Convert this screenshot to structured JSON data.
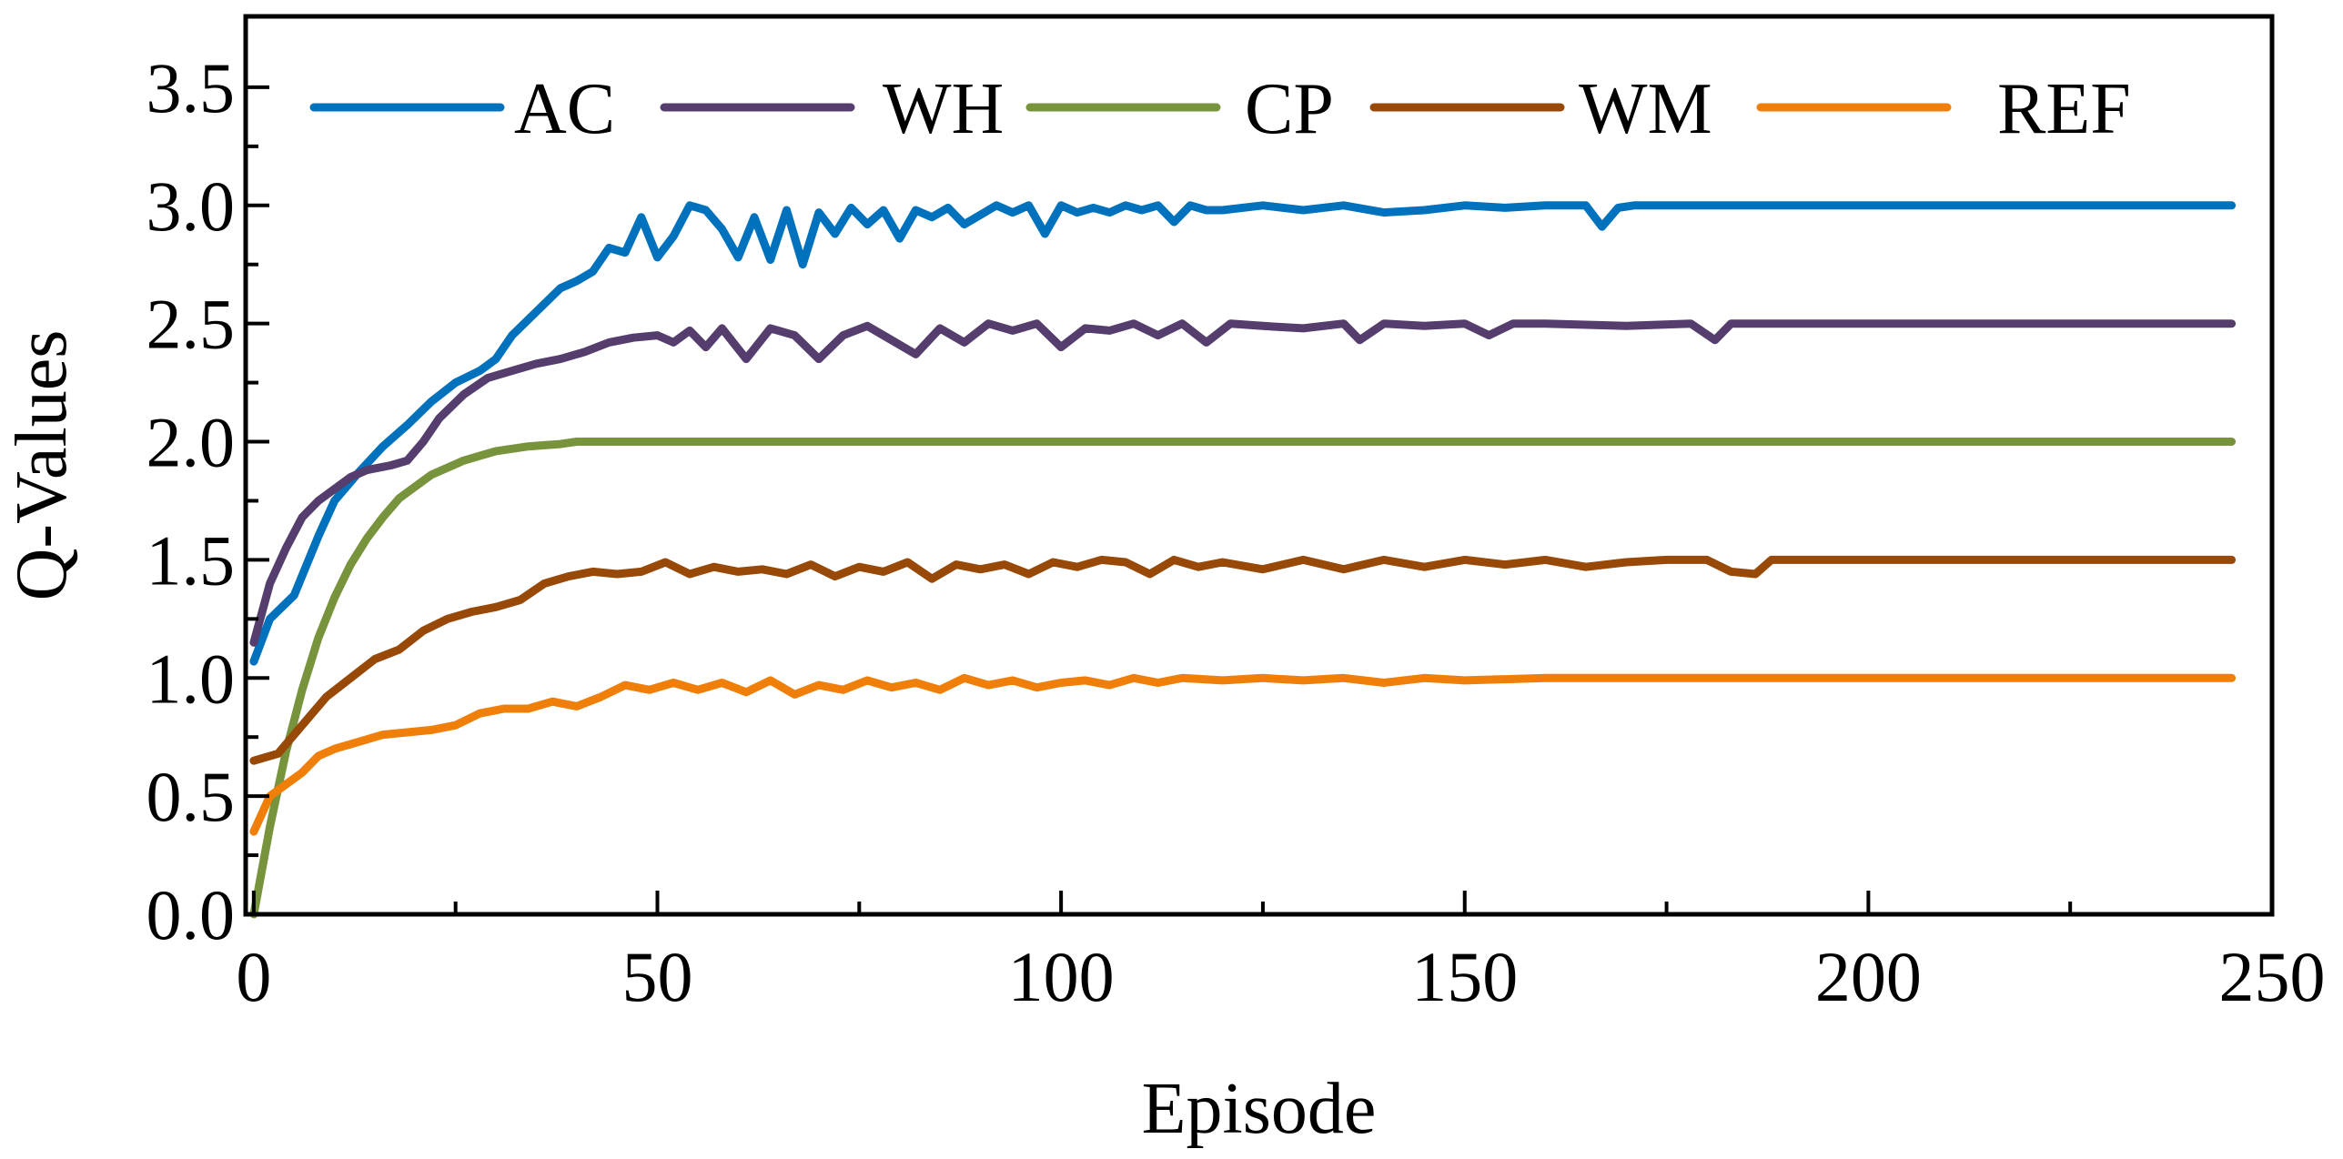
{
  "chart_data": {
    "type": "line",
    "title": "",
    "xlabel": "Episode",
    "ylabel": "Q-Values",
    "xlim": [
      -1,
      250
    ],
    "ylim": [
      0,
      3.8
    ],
    "xticks": [
      0,
      50,
      100,
      150,
      200,
      250
    ],
    "xtick_labels": [
      "0",
      "50",
      "100",
      "150",
      "200",
      "250"
    ],
    "yticks": [
      0,
      0.5,
      1.0,
      1.5,
      2.0,
      2.5,
      3.0,
      3.5
    ],
    "ytick_labels": [
      "0.0",
      "0.5",
      "1.0",
      "1.5",
      "2.0",
      "2.5",
      "3.0",
      "3.5"
    ],
    "grid": false,
    "legend_position": "top",
    "series": [
      {
        "name": "AC",
        "color": "#0072BD",
        "x": [
          0,
          2,
          5,
          8,
          10,
          13,
          16,
          19,
          22,
          25,
          28,
          30,
          32,
          35,
          38,
          40,
          42,
          44,
          46,
          48,
          50,
          52,
          54,
          56,
          58,
          60,
          62,
          64,
          66,
          68,
          70,
          72,
          74,
          76,
          78,
          80,
          82,
          84,
          86,
          88,
          90,
          92,
          94,
          96,
          98,
          100,
          102,
          104,
          106,
          108,
          110,
          112,
          114,
          116,
          118,
          120,
          125,
          130,
          135,
          140,
          145,
          150,
          155,
          160,
          165,
          167,
          169,
          171,
          175,
          180,
          190,
          200,
          210,
          220,
          230,
          245
        ],
        "y": [
          1.07,
          1.25,
          1.35,
          1.6,
          1.75,
          1.87,
          1.98,
          2.07,
          2.17,
          2.25,
          2.3,
          2.35,
          2.45,
          2.55,
          2.65,
          2.68,
          2.72,
          2.82,
          2.8,
          2.95,
          2.78,
          2.87,
          3.0,
          2.98,
          2.9,
          2.78,
          2.95,
          2.77,
          2.98,
          2.75,
          2.97,
          2.88,
          2.99,
          2.92,
          2.98,
          2.86,
          2.98,
          2.95,
          2.99,
          2.92,
          2.96,
          3.0,
          2.97,
          3.0,
          2.88,
          3.0,
          2.97,
          2.99,
          2.97,
          3.0,
          2.98,
          3.0,
          2.93,
          3.0,
          2.98,
          2.98,
          3.0,
          2.98,
          3.0,
          2.97,
          2.98,
          3.0,
          2.99,
          3.0,
          3.0,
          2.91,
          2.99,
          3.0,
          3.0,
          3.0,
          3.0,
          3.0,
          3.0,
          3.0,
          3.0,
          3.0
        ]
      },
      {
        "name": "WH",
        "color": "#553E6E",
        "x": [
          0,
          2,
          4,
          6,
          8,
          10,
          12,
          14,
          17,
          19,
          21,
          23,
          26,
          29,
          32,
          35,
          38,
          41,
          44,
          47,
          50,
          52,
          54,
          56,
          58,
          61,
          64,
          67,
          70,
          73,
          76,
          79,
          82,
          85,
          88,
          91,
          94,
          97,
          100,
          103,
          106,
          109,
          112,
          115,
          118,
          121,
          125,
          130,
          135,
          137,
          140,
          145,
          150,
          153,
          156,
          160,
          170,
          178,
          181,
          183,
          190,
          200,
          210,
          220,
          230,
          245
        ],
        "y": [
          1.15,
          1.4,
          1.55,
          1.68,
          1.75,
          1.8,
          1.85,
          1.88,
          1.9,
          1.92,
          2.0,
          2.1,
          2.2,
          2.27,
          2.3,
          2.33,
          2.35,
          2.38,
          2.42,
          2.44,
          2.45,
          2.42,
          2.47,
          2.4,
          2.48,
          2.35,
          2.48,
          2.45,
          2.35,
          2.45,
          2.49,
          2.43,
          2.37,
          2.48,
          2.42,
          2.5,
          2.47,
          2.5,
          2.4,
          2.48,
          2.47,
          2.5,
          2.45,
          2.5,
          2.42,
          2.5,
          2.49,
          2.48,
          2.5,
          2.43,
          2.5,
          2.49,
          2.5,
          2.45,
          2.5,
          2.5,
          2.49,
          2.5,
          2.43,
          2.5,
          2.5,
          2.5,
          2.5,
          2.5,
          2.5,
          2.5
        ]
      },
      {
        "name": "CP",
        "color": "#77933C",
        "x": [
          0,
          2,
          4,
          6,
          8,
          10,
          12,
          14,
          16,
          18,
          20,
          22,
          24,
          26,
          28,
          30,
          32,
          34,
          36,
          38,
          40,
          45,
          50,
          60,
          80,
          100,
          150,
          200,
          245
        ],
        "y": [
          0.0,
          0.37,
          0.69,
          0.95,
          1.17,
          1.34,
          1.48,
          1.59,
          1.68,
          1.76,
          1.81,
          1.86,
          1.89,
          1.92,
          1.94,
          1.96,
          1.97,
          1.98,
          1.985,
          1.99,
          2.0,
          2.0,
          2.0,
          2.0,
          2.0,
          2.0,
          2.0,
          2.0,
          2.0
        ]
      },
      {
        "name": "WM",
        "color": "#984807",
        "x": [
          0,
          3,
          6,
          9,
          12,
          15,
          18,
          21,
          24,
          27,
          30,
          33,
          36,
          39,
          42,
          45,
          48,
          51,
          54,
          57,
          60,
          63,
          66,
          69,
          72,
          75,
          78,
          81,
          84,
          87,
          90,
          93,
          96,
          99,
          102,
          105,
          108,
          111,
          114,
          117,
          120,
          125,
          130,
          135,
          140,
          145,
          150,
          155,
          160,
          165,
          170,
          175,
          180,
          183,
          186,
          188,
          190,
          200,
          220,
          245
        ],
        "y": [
          0.65,
          0.68,
          0.8,
          0.92,
          1.0,
          1.08,
          1.12,
          1.2,
          1.25,
          1.28,
          1.3,
          1.33,
          1.4,
          1.43,
          1.45,
          1.44,
          1.45,
          1.49,
          1.44,
          1.47,
          1.45,
          1.46,
          1.44,
          1.48,
          1.43,
          1.47,
          1.45,
          1.49,
          1.42,
          1.48,
          1.46,
          1.48,
          1.44,
          1.49,
          1.47,
          1.5,
          1.49,
          1.44,
          1.5,
          1.47,
          1.49,
          1.46,
          1.5,
          1.46,
          1.5,
          1.47,
          1.5,
          1.48,
          1.5,
          1.47,
          1.49,
          1.5,
          1.5,
          1.45,
          1.44,
          1.5,
          1.5,
          1.5,
          1.5,
          1.5
        ]
      },
      {
        "name": "REF",
        "color": "#F07F09",
        "x": [
          0,
          2,
          4,
          6,
          8,
          10,
          12,
          14,
          16,
          19,
          22,
          25,
          28,
          31,
          34,
          37,
          40,
          43,
          46,
          49,
          52,
          55,
          58,
          61,
          64,
          67,
          70,
          73,
          76,
          79,
          82,
          85,
          88,
          91,
          94,
          97,
          100,
          103,
          106,
          109,
          112,
          115,
          120,
          125,
          130,
          135,
          140,
          145,
          150,
          160,
          180,
          200,
          220,
          245
        ],
        "y": [
          0.35,
          0.5,
          0.55,
          0.6,
          0.67,
          0.7,
          0.72,
          0.74,
          0.76,
          0.77,
          0.78,
          0.8,
          0.85,
          0.87,
          0.87,
          0.9,
          0.88,
          0.92,
          0.97,
          0.95,
          0.98,
          0.95,
          0.98,
          0.94,
          0.99,
          0.93,
          0.97,
          0.95,
          0.99,
          0.96,
          0.98,
          0.95,
          1.0,
          0.97,
          0.99,
          0.96,
          0.98,
          0.99,
          0.97,
          1.0,
          0.98,
          1.0,
          0.99,
          1.0,
          0.99,
          1.0,
          0.98,
          1.0,
          0.99,
          1.0,
          1.0,
          1.0,
          1.0,
          1.0
        ]
      }
    ]
  }
}
